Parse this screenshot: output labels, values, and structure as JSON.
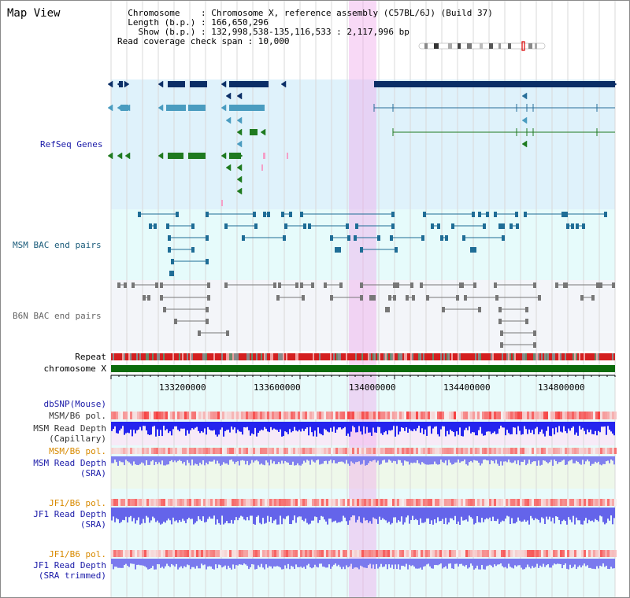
{
  "view_title": "Map View",
  "info": {
    "line1": "  Chromosome    : Chromosome X, reference assembly (C57BL/6J) (Build 37)",
    "line2": "  Length (b.p.) : 166,650,296",
    "line3": "    Show (b.p.) : 132,998,538-135,116,533 : 2,117,996 bp",
    "line4": "Read coverage check span : 10,000"
  },
  "tracks": {
    "refseq": "RefSeq Genes",
    "msm_bac": "MSM BAC end pairs",
    "b6n_bac": "B6N BAC end pairs",
    "repeat": "Repeat",
    "chromosome": "chromosome X",
    "dbsnp": "dbSNP(Mouse)",
    "msm_b6_pol_1": "MSM/B6 pol.",
    "msm_depth_cap_1": "MSM Read Depth",
    "msm_depth_cap_2": "(Capillary)",
    "msm_b6_pol_2": "MSM/B6 pol.",
    "msm_depth_sra_1": "MSM Read Depth",
    "msm_depth_sra_2": "(SRA)",
    "jf1_b6_pol_1": "JF1/B6 pol.",
    "jf1_depth_sra_1": "JF1 Read Depth",
    "jf1_depth_sra_2": "(SRA)",
    "jf1_b6_pol_2": "JF1/B6 pol.",
    "jf1_depth_trim_1": "JF1 Read Depth",
    "jf1_depth_trim_2": "(SRA trimmed)"
  },
  "axis_ticks": [
    "133200000",
    "133600000",
    "134000000",
    "134400000",
    "134800000"
  ],
  "colors": {
    "refseq_bg": "#dff2fb",
    "bac_bg": "#e6fbfb",
    "b6n_bg": "#f2f5fa",
    "highlight": "#f6d2f2",
    "dark_navy": "#0b2e66",
    "gene_blue": "#4a9cc0",
    "gene_green": "#1f7a1f",
    "chromosome_bar": "#0b6b0b",
    "repeat_red": "#cc2222",
    "depth_blue": "#2222ee",
    "depth_light": "#7a7aee",
    "pol_red": "#f08a8a"
  }
}
